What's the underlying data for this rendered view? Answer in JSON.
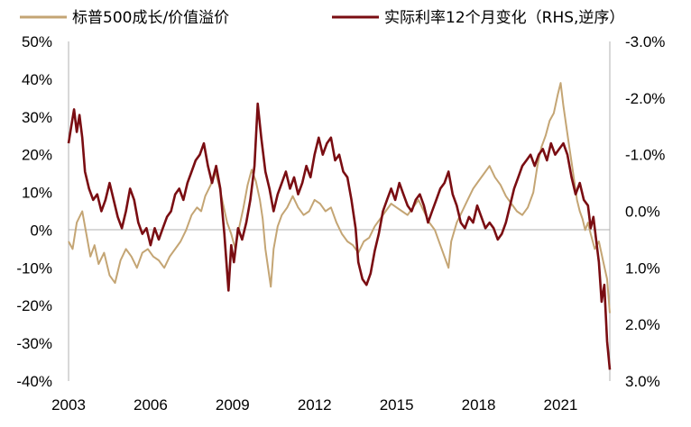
{
  "chart_data": {
    "type": "line",
    "title": "",
    "legend_position": "top",
    "grid": false,
    "x": {
      "ticks": [
        "2003",
        "2006",
        "2009",
        "2012",
        "2015",
        "2018",
        "2021"
      ],
      "range": [
        2003.0,
        2022.8
      ]
    },
    "y_left": {
      "ticks": [
        "-40%",
        "-30%",
        "-20%",
        "-10%",
        "0%",
        "10%",
        "20%",
        "30%",
        "40%",
        "50%"
      ],
      "range": [
        -0.4,
        0.5
      ],
      "format": "percent"
    },
    "y_right": {
      "ticks": [
        "-3.0%",
        "-2.0%",
        "-1.0%",
        "0.0%",
        "1.0%",
        "2.0%",
        "3.0%"
      ],
      "range": [
        -3.0,
        3.0
      ],
      "inverted": true,
      "format": "percent"
    },
    "series": [
      {
        "name": "标普500成长/价值溢价",
        "axis": "left",
        "color": "#c4a574",
        "points": [
          [
            2003.0,
            -0.03
          ],
          [
            2003.15,
            -0.05
          ],
          [
            2003.3,
            0.02
          ],
          [
            2003.5,
            0.05
          ],
          [
            2003.65,
            -0.01
          ],
          [
            2003.8,
            -0.07
          ],
          [
            2003.95,
            -0.04
          ],
          [
            2004.1,
            -0.09
          ],
          [
            2004.3,
            -0.06
          ],
          [
            2004.5,
            -0.12
          ],
          [
            2004.7,
            -0.14
          ],
          [
            2004.9,
            -0.08
          ],
          [
            2005.1,
            -0.05
          ],
          [
            2005.3,
            -0.07
          ],
          [
            2005.5,
            -0.1
          ],
          [
            2005.7,
            -0.06
          ],
          [
            2005.9,
            -0.05
          ],
          [
            2006.1,
            -0.07
          ],
          [
            2006.3,
            -0.08
          ],
          [
            2006.5,
            -0.1
          ],
          [
            2006.7,
            -0.07
          ],
          [
            2006.9,
            -0.05
          ],
          [
            2007.1,
            -0.03
          ],
          [
            2007.3,
            0.0
          ],
          [
            2007.5,
            0.04
          ],
          [
            2007.7,
            0.06
          ],
          [
            2007.85,
            0.05
          ],
          [
            2008.0,
            0.09
          ],
          [
            2008.2,
            0.12
          ],
          [
            2008.35,
            0.16
          ],
          [
            2008.5,
            0.12
          ],
          [
            2008.65,
            0.07
          ],
          [
            2008.8,
            0.02
          ],
          [
            2008.95,
            -0.01
          ],
          [
            2009.1,
            -0.05
          ],
          [
            2009.25,
            0.01
          ],
          [
            2009.4,
            0.06
          ],
          [
            2009.55,
            0.12
          ],
          [
            2009.7,
            0.16
          ],
          [
            2009.85,
            0.13
          ],
          [
            2010.0,
            0.08
          ],
          [
            2010.1,
            0.03
          ],
          [
            2010.2,
            -0.05
          ],
          [
            2010.3,
            -0.1
          ],
          [
            2010.4,
            -0.15
          ],
          [
            2010.5,
            -0.05
          ],
          [
            2010.65,
            0.01
          ],
          [
            2010.8,
            0.04
          ],
          [
            2011.0,
            0.06
          ],
          [
            2011.2,
            0.09
          ],
          [
            2011.4,
            0.06
          ],
          [
            2011.6,
            0.04
          ],
          [
            2011.8,
            0.05
          ],
          [
            2012.0,
            0.08
          ],
          [
            2012.2,
            0.07
          ],
          [
            2012.4,
            0.05
          ],
          [
            2012.6,
            0.06
          ],
          [
            2012.8,
            0.02
          ],
          [
            2013.0,
            -0.01
          ],
          [
            2013.2,
            -0.03
          ],
          [
            2013.4,
            -0.04
          ],
          [
            2013.6,
            -0.06
          ],
          [
            2013.8,
            -0.03
          ],
          [
            2014.0,
            -0.02
          ],
          [
            2014.2,
            0.01
          ],
          [
            2014.4,
            0.03
          ],
          [
            2014.6,
            0.05
          ],
          [
            2014.8,
            0.07
          ],
          [
            2015.0,
            0.06
          ],
          [
            2015.2,
            0.05
          ],
          [
            2015.4,
            0.04
          ],
          [
            2015.6,
            0.06
          ],
          [
            2015.8,
            0.08
          ],
          [
            2016.0,
            0.05
          ],
          [
            2016.2,
            0.02
          ],
          [
            2016.4,
            0.0
          ],
          [
            2016.6,
            -0.04
          ],
          [
            2016.8,
            -0.08
          ],
          [
            2016.9,
            -0.1
          ],
          [
            2017.0,
            -0.03
          ],
          [
            2017.2,
            0.02
          ],
          [
            2017.4,
            0.05
          ],
          [
            2017.6,
            0.08
          ],
          [
            2017.8,
            0.11
          ],
          [
            2018.0,
            0.13
          ],
          [
            2018.2,
            0.15
          ],
          [
            2018.4,
            0.17
          ],
          [
            2018.6,
            0.14
          ],
          [
            2018.8,
            0.12
          ],
          [
            2019.0,
            0.09
          ],
          [
            2019.2,
            0.07
          ],
          [
            2019.4,
            0.05
          ],
          [
            2019.6,
            0.04
          ],
          [
            2019.8,
            0.06
          ],
          [
            2020.0,
            0.1
          ],
          [
            2020.15,
            0.17
          ],
          [
            2020.3,
            0.22
          ],
          [
            2020.45,
            0.25
          ],
          [
            2020.6,
            0.29
          ],
          [
            2020.75,
            0.31
          ],
          [
            2020.9,
            0.36
          ],
          [
            2021.0,
            0.39
          ],
          [
            2021.1,
            0.33
          ],
          [
            2021.2,
            0.28
          ],
          [
            2021.3,
            0.23
          ],
          [
            2021.4,
            0.18
          ],
          [
            2021.5,
            0.13
          ],
          [
            2021.6,
            0.08
          ],
          [
            2021.7,
            0.05
          ],
          [
            2021.8,
            0.03
          ],
          [
            2021.9,
            0.0
          ],
          [
            2022.0,
            0.02
          ],
          [
            2022.1,
            -0.01
          ],
          [
            2022.25,
            -0.05
          ],
          [
            2022.4,
            -0.03
          ],
          [
            2022.55,
            -0.08
          ],
          [
            2022.7,
            -0.13
          ],
          [
            2022.8,
            -0.22
          ]
        ]
      },
      {
        "name": "实际利率12个月变化（RHS,逆序）",
        "axis": "right",
        "color": "#7a0d12",
        "points": [
          [
            2003.0,
            -1.2
          ],
          [
            2003.1,
            -1.5
          ],
          [
            2003.2,
            -1.8
          ],
          [
            2003.3,
            -1.4
          ],
          [
            2003.4,
            -1.7
          ],
          [
            2003.5,
            -1.3
          ],
          [
            2003.6,
            -0.7
          ],
          [
            2003.75,
            -0.4
          ],
          [
            2003.9,
            -0.2
          ],
          [
            2004.05,
            -0.3
          ],
          [
            2004.2,
            0.0
          ],
          [
            2004.35,
            -0.2
          ],
          [
            2004.5,
            -0.5
          ],
          [
            2004.65,
            -0.2
          ],
          [
            2004.8,
            0.1
          ],
          [
            2004.95,
            0.3
          ],
          [
            2005.1,
            0.0
          ],
          [
            2005.25,
            -0.4
          ],
          [
            2005.4,
            -0.2
          ],
          [
            2005.55,
            0.2
          ],
          [
            2005.7,
            0.4
          ],
          [
            2005.85,
            0.3
          ],
          [
            2006.0,
            0.6
          ],
          [
            2006.15,
            0.3
          ],
          [
            2006.3,
            0.5
          ],
          [
            2006.45,
            0.3
          ],
          [
            2006.6,
            0.1
          ],
          [
            2006.75,
            0.0
          ],
          [
            2006.9,
            -0.3
          ],
          [
            2007.05,
            -0.4
          ],
          [
            2007.2,
            -0.2
          ],
          [
            2007.35,
            -0.5
          ],
          [
            2007.5,
            -0.7
          ],
          [
            2007.65,
            -0.9
          ],
          [
            2007.8,
            -1.0
          ],
          [
            2007.95,
            -1.2
          ],
          [
            2008.1,
            -0.8
          ],
          [
            2008.25,
            -0.5
          ],
          [
            2008.4,
            -0.8
          ],
          [
            2008.55,
            -0.4
          ],
          [
            2008.7,
            0.4
          ],
          [
            2008.85,
            1.4
          ],
          [
            2008.95,
            0.6
          ],
          [
            2009.05,
            0.9
          ],
          [
            2009.2,
            0.3
          ],
          [
            2009.35,
            0.5
          ],
          [
            2009.5,
            0.2
          ],
          [
            2009.65,
            -0.2
          ],
          [
            2009.8,
            -0.8
          ],
          [
            2009.92,
            -1.9
          ],
          [
            2010.05,
            -1.3
          ],
          [
            2010.2,
            -0.7
          ],
          [
            2010.35,
            -0.4
          ],
          [
            2010.5,
            0.0
          ],
          [
            2010.65,
            -0.3
          ],
          [
            2010.8,
            -0.5
          ],
          [
            2010.95,
            -0.7
          ],
          [
            2011.1,
            -0.4
          ],
          [
            2011.25,
            -0.6
          ],
          [
            2011.4,
            -0.3
          ],
          [
            2011.55,
            -0.5
          ],
          [
            2011.7,
            -0.8
          ],
          [
            2011.85,
            -0.6
          ],
          [
            2012.0,
            -1.0
          ],
          [
            2012.15,
            -1.3
          ],
          [
            2012.3,
            -1.0
          ],
          [
            2012.45,
            -1.2
          ],
          [
            2012.6,
            -1.3
          ],
          [
            2012.75,
            -0.9
          ],
          [
            2012.9,
            -1.0
          ],
          [
            2013.05,
            -0.7
          ],
          [
            2013.2,
            -0.6
          ],
          [
            2013.35,
            -0.2
          ],
          [
            2013.5,
            0.3
          ],
          [
            2013.6,
            0.9
          ],
          [
            2013.75,
            1.2
          ],
          [
            2013.9,
            1.3
          ],
          [
            2014.05,
            1.1
          ],
          [
            2014.2,
            0.7
          ],
          [
            2014.35,
            0.4
          ],
          [
            2014.5,
            0.0
          ],
          [
            2014.65,
            -0.2
          ],
          [
            2014.8,
            -0.4
          ],
          [
            2014.95,
            -0.2
          ],
          [
            2015.1,
            -0.5
          ],
          [
            2015.25,
            -0.3
          ],
          [
            2015.4,
            -0.1
          ],
          [
            2015.55,
            0.0
          ],
          [
            2015.7,
            -0.2
          ],
          [
            2015.85,
            -0.3
          ],
          [
            2016.0,
            -0.1
          ],
          [
            2016.15,
            0.2
          ],
          [
            2016.3,
            0.0
          ],
          [
            2016.45,
            -0.2
          ],
          [
            2016.6,
            -0.4
          ],
          [
            2016.75,
            -0.5
          ],
          [
            2016.9,
            -0.7
          ],
          [
            2017.05,
            -0.3
          ],
          [
            2017.2,
            -0.1
          ],
          [
            2017.35,
            0.2
          ],
          [
            2017.5,
            0.3
          ],
          [
            2017.65,
            0.1
          ],
          [
            2017.8,
            0.2
          ],
          [
            2017.95,
            -0.1
          ],
          [
            2018.1,
            0.1
          ],
          [
            2018.25,
            0.3
          ],
          [
            2018.4,
            0.2
          ],
          [
            2018.55,
            0.3
          ],
          [
            2018.7,
            0.5
          ],
          [
            2018.85,
            0.4
          ],
          [
            2019.0,
            0.2
          ],
          [
            2019.15,
            -0.1
          ],
          [
            2019.3,
            -0.4
          ],
          [
            2019.45,
            -0.6
          ],
          [
            2019.6,
            -0.8
          ],
          [
            2019.75,
            -0.9
          ],
          [
            2019.9,
            -1.0
          ],
          [
            2020.05,
            -0.8
          ],
          [
            2020.2,
            -1.0
          ],
          [
            2020.35,
            -1.1
          ],
          [
            2020.5,
            -0.9
          ],
          [
            2020.65,
            -1.2
          ],
          [
            2020.8,
            -1.0
          ],
          [
            2020.95,
            -1.1
          ],
          [
            2021.1,
            -1.2
          ],
          [
            2021.25,
            -1.0
          ],
          [
            2021.4,
            -0.6
          ],
          [
            2021.55,
            -0.3
          ],
          [
            2021.7,
            -0.5
          ],
          [
            2021.85,
            -0.2
          ],
          [
            2022.0,
            -0.1
          ],
          [
            2022.1,
            0.3
          ],
          [
            2022.2,
            0.1
          ],
          [
            2022.3,
            0.5
          ],
          [
            2022.4,
            0.9
          ],
          [
            2022.5,
            1.6
          ],
          [
            2022.6,
            1.3
          ],
          [
            2022.7,
            2.3
          ],
          [
            2022.8,
            2.8
          ]
        ]
      }
    ]
  }
}
